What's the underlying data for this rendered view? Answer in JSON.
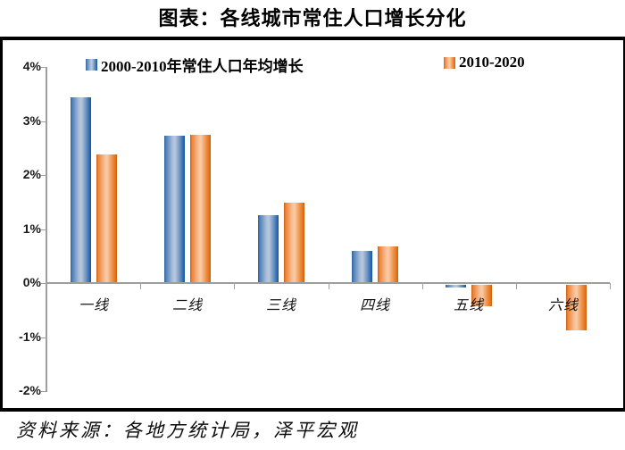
{
  "title": "图表：各线城市常住人口增长分化",
  "source": "资料来源：各地方统计局，泽平宏观",
  "colors": {
    "series_blue": "#4a7db8",
    "series_orange": "#ec8136",
    "axis": "#9e9e9e",
    "rule": "#000000"
  },
  "chart_data": {
    "type": "bar",
    "title": "图表：各线城市常住人口增长分化",
    "categories": [
      "一线",
      "二线",
      "三线",
      "四线",
      "五线",
      "六线"
    ],
    "series": [
      {
        "name": "2000-2010年常住人口年均增长",
        "color": "#4a7db8",
        "values": [
          3.44,
          2.72,
          1.26,
          0.6,
          -0.05,
          0.0
        ]
      },
      {
        "name": "2010-2020",
        "color": "#ec8136",
        "values": [
          2.38,
          2.74,
          1.49,
          0.68,
          -0.4,
          -0.85
        ]
      }
    ],
    "xlabel": "",
    "ylabel": "",
    "ylim": [
      -2,
      4
    ],
    "ytick_labels": [
      "4%",
      "3%",
      "2%",
      "1%",
      "0%",
      "-1%",
      "-2%"
    ],
    "grid": false,
    "legend_position": "top",
    "unit": "percent"
  }
}
